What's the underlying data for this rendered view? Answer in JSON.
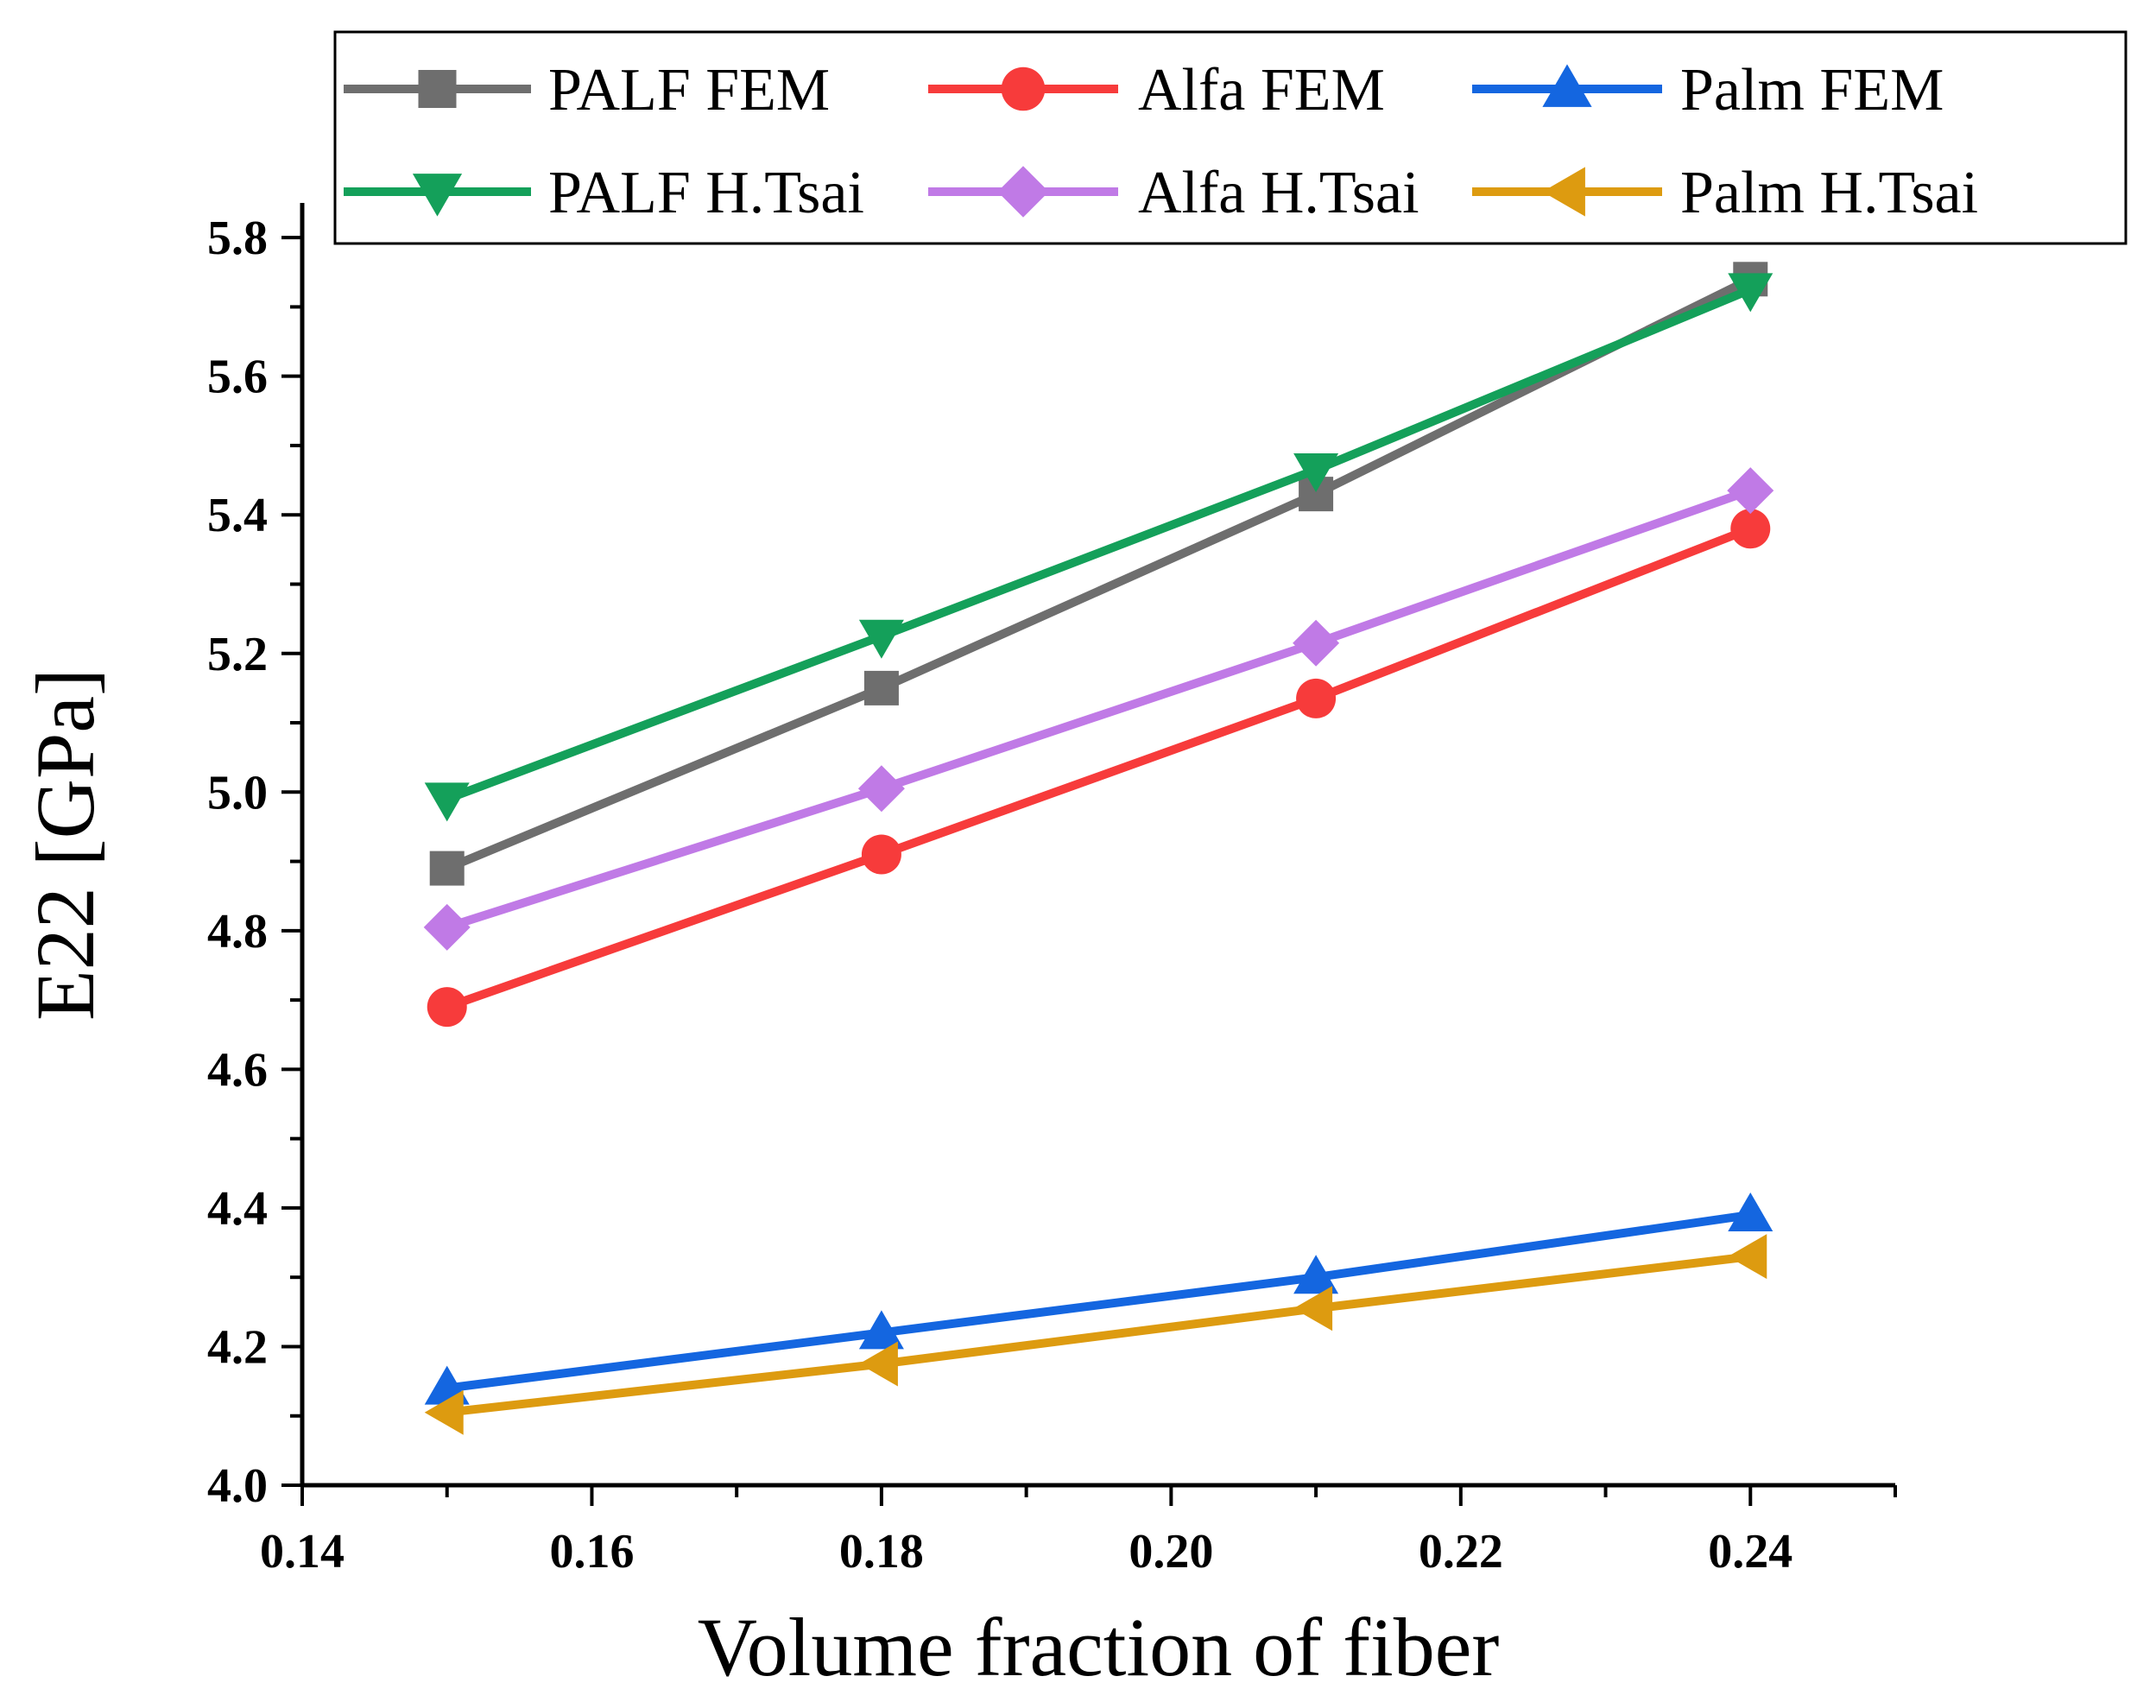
{
  "chart_data": {
    "type": "line",
    "title": "",
    "xlabel": "Volume fraction of  fiber",
    "ylabel": "E22 [GPa]",
    "x": [
      0.15,
      0.18,
      0.21,
      0.24
    ],
    "xlim": [
      0.14,
      0.25
    ],
    "ylim": [
      4.0,
      5.85
    ],
    "xticks": [
      "0.14",
      "0.16",
      "0.18",
      "0.20",
      "0.22",
      "0.24"
    ],
    "yticks": [
      "4.0",
      "4.2",
      "4.4",
      "4.6",
      "4.8",
      "5.0",
      "5.2",
      "5.4",
      "5.6",
      "5.8"
    ],
    "grid": false,
    "legend_position": "top",
    "series": [
      {
        "name": "PALF FEM",
        "values": [
          4.89,
          5.15,
          5.43,
          5.74
        ],
        "color": "#6e6e6e",
        "marker": "square"
      },
      {
        "name": "Alfa FEM",
        "values": [
          4.69,
          4.91,
          5.135,
          5.38
        ],
        "color": "#f73b3b",
        "marker": "circle"
      },
      {
        "name": "Palm FEM",
        "values": [
          4.14,
          4.22,
          4.3,
          4.39
        ],
        "color": "#1466e0",
        "marker": "triangle-up"
      },
      {
        "name": "PALF H.Tsai",
        "values": [
          4.99,
          5.225,
          5.465,
          5.725
        ],
        "color": "#14a05a",
        "marker": "triangle-down"
      },
      {
        "name": "Alfa  H.Tsai",
        "values": [
          4.805,
          5.005,
          5.215,
          5.435
        ],
        "color": "#c07ae6",
        "marker": "diamond"
      },
      {
        "name": "Palm  H.Tsai",
        "values": [
          4.105,
          4.175,
          4.255,
          4.33
        ],
        "color": "#dd9b10",
        "marker": "triangle-left"
      }
    ]
  }
}
